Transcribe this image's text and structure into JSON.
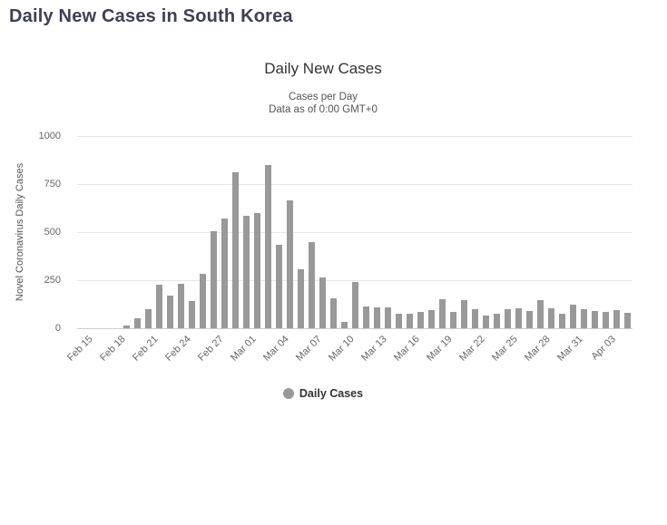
{
  "page": {
    "title": "Daily New Cases in South Korea"
  },
  "chart": {
    "title": "Daily New Cases",
    "subtitle_line1": "Cases per Day",
    "subtitle_line2": "Data as of 0:00 GMT+0",
    "y_axis_title": "Novel Coronavirus Daily Cases",
    "legend_label": "Daily Cases",
    "colors": {
      "bar": "#999999",
      "gridline": "#e6e6e6",
      "axis_line": "#cccccc",
      "tick_label": "#666666",
      "title": "#333333",
      "subtitle": "#555555",
      "page_title": "#3e4154",
      "legend_marker": "#999999"
    }
  },
  "chart_data": {
    "type": "bar",
    "title": "Daily New Cases",
    "subtitle": "Cases per Day / Data as of 0:00 GMT+0",
    "xlabel": "",
    "ylabel": "Novel Coronavirus Daily Cases",
    "ylim": [
      0,
      1000
    ],
    "yticks": [
      0,
      250,
      500,
      750,
      1000
    ],
    "grid": true,
    "legend": [
      "Daily Cases"
    ],
    "legend_position": "bottom",
    "x_tick_interval": 3,
    "x_ticks_shown": [
      "Feb 15",
      "Feb 18",
      "Feb 21",
      "Feb 24",
      "Feb 27",
      "Mar 01",
      "Mar 04",
      "Mar 07",
      "Mar 10",
      "Mar 13",
      "Mar 16",
      "Mar 19",
      "Mar 22",
      "Mar 25",
      "Mar 28",
      "Mar 31",
      "Apr 03"
    ],
    "categories": [
      "Feb 15",
      "Feb 16",
      "Feb 17",
      "Feb 18",
      "Feb 19",
      "Feb 20",
      "Feb 21",
      "Feb 22",
      "Feb 23",
      "Feb 24",
      "Feb 25",
      "Feb 26",
      "Feb 27",
      "Feb 28",
      "Feb 29",
      "Mar 01",
      "Mar 02",
      "Mar 03",
      "Mar 04",
      "Mar 05",
      "Mar 06",
      "Mar 07",
      "Mar 08",
      "Mar 09",
      "Mar 10",
      "Mar 11",
      "Mar 12",
      "Mar 13",
      "Mar 14",
      "Mar 15",
      "Mar 16",
      "Mar 17",
      "Mar 18",
      "Mar 19",
      "Mar 20",
      "Mar 21",
      "Mar 22",
      "Mar 23",
      "Mar 24",
      "Mar 25",
      "Mar 26",
      "Mar 27",
      "Mar 28",
      "Mar 29",
      "Mar 30",
      "Mar 31",
      "Apr 01",
      "Apr 02",
      "Apr 03",
      "Apr 04",
      "Apr 05"
    ],
    "values": [
      0,
      1,
      1,
      2,
      15,
      53,
      100,
      229,
      169,
      231,
      144,
      284,
      505,
      571,
      813,
      586,
      599,
      851,
      435,
      665,
      305,
      450,
      265,
      155,
      35,
      242,
      114,
      110,
      107,
      76,
      74,
      84,
      93,
      152,
      87,
      147,
      98,
      64,
      76,
      100,
      104,
      91,
      146,
      105,
      78,
      125,
      101,
      89,
      86,
      94,
      81
    ]
  }
}
